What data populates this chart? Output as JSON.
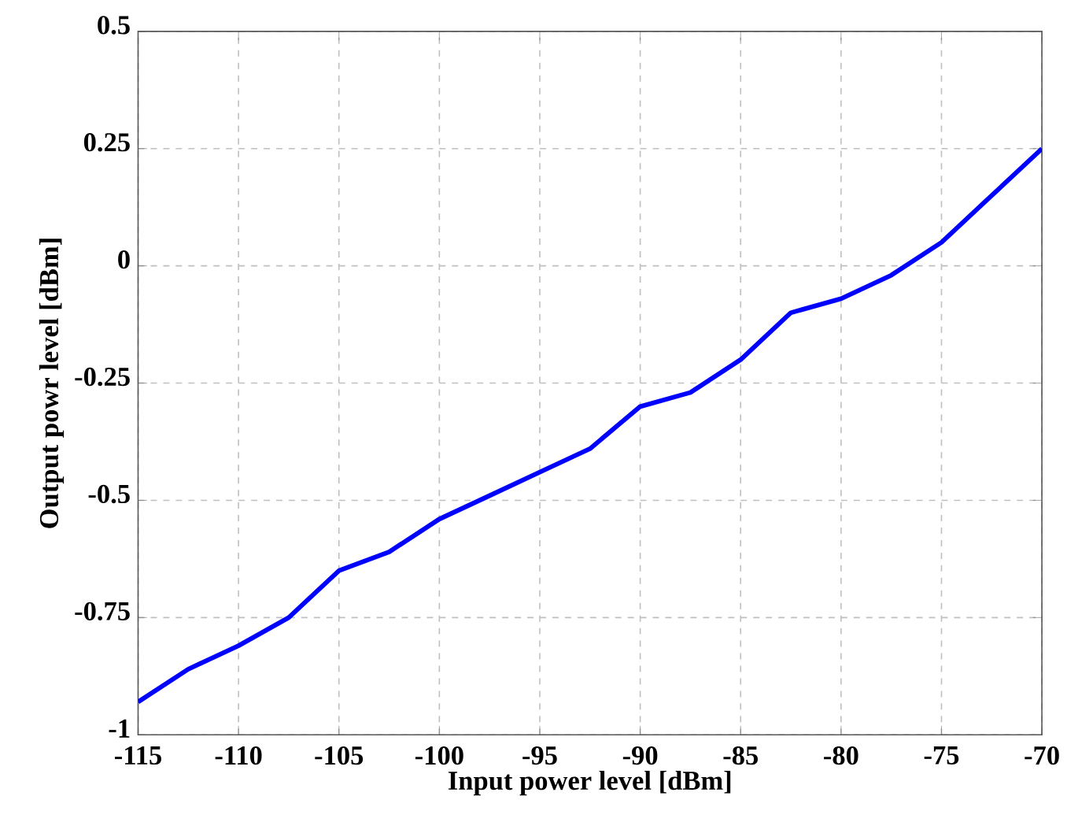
{
  "chart_data": {
    "type": "line",
    "xlabel": "Input power level [dBm]",
    "ylabel": "Output powr level [dBm]",
    "x": [
      -115,
      -112.5,
      -110,
      -107.5,
      -105,
      -102.5,
      -100,
      -97.5,
      -95,
      -92.5,
      -90,
      -87.5,
      -85,
      -82.5,
      -80,
      -77.5,
      -75,
      -72.5,
      -70
    ],
    "series": [
      {
        "color": "#0000ff",
        "values": [
          -0.93,
          -0.86,
          -0.81,
          -0.75,
          -0.65,
          -0.61,
          -0.54,
          -0.49,
          -0.44,
          -0.39,
          -0.3,
          -0.27,
          -0.2,
          -0.1,
          -0.07,
          -0.02,
          0.05,
          0.15,
          0.25
        ]
      }
    ],
    "xlim": [
      -115,
      -70
    ],
    "ylim": [
      -1,
      0.5
    ],
    "xticks": [
      -115,
      -110,
      -105,
      -100,
      -95,
      -90,
      -85,
      -80,
      -75,
      -70
    ],
    "yticks": [
      -1,
      -0.75,
      -0.5,
      -0.25,
      0,
      0.25,
      0.5
    ],
    "grid": true,
    "line_style": "solid",
    "marker": "none"
  }
}
